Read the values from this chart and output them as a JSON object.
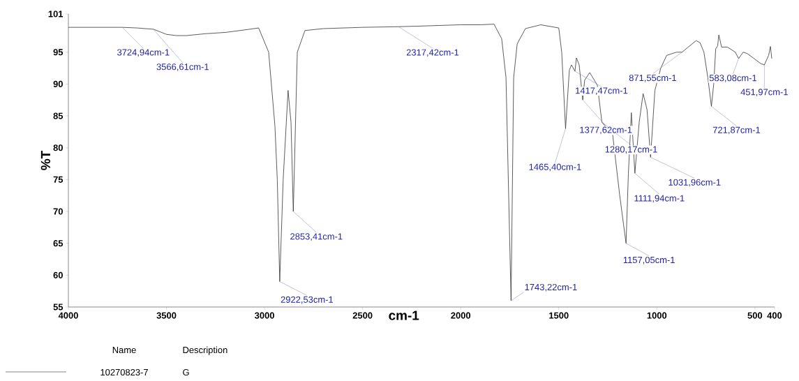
{
  "chart_data": {
    "type": "line",
    "xlabel": "cm-1",
    "ylabel": "%T",
    "xlim": [
      4000,
      400
    ],
    "ylim": [
      55,
      101
    ],
    "xticks": [
      4000,
      3500,
      3000,
      2500,
      2000,
      1500,
      1000,
      500,
      400
    ],
    "yticks": [
      55,
      60,
      65,
      70,
      75,
      80,
      85,
      90,
      95,
      101
    ],
    "legend": "bottom",
    "legend_title": "Name",
    "series": [
      {
        "name": "10270823-7",
        "color": "#333333",
        "x": [
          4000,
          3724.94,
          3650,
          3566.61,
          3500,
          3450,
          3400,
          3300,
          3200,
          3100,
          3030,
          2979,
          2947,
          2935,
          2922.53,
          2905,
          2880,
          2865,
          2853.41,
          2833,
          2794,
          2700,
          2500,
          2317.42,
          2200,
          2000,
          1900,
          1830,
          1791,
          1769,
          1743.22,
          1730,
          1712,
          1670,
          1592,
          1500,
          1485,
          1465.4,
          1446,
          1435,
          1417.47,
          1410,
          1396,
          1377.62,
          1368,
          1342,
          1303,
          1280.17,
          1225,
          1190,
          1170,
          1157.05,
          1145,
          1130,
          1111.94,
          1090,
          1070,
          1050,
          1031.96,
          1010,
          980,
          950,
          900,
          871.55,
          840,
          800,
          780,
          760,
          740,
          721.87,
          710,
          700,
          690,
          684,
          670,
          640,
          600,
          583.08,
          560,
          540,
          500,
          470,
          451.97,
          430,
          421,
          414
        ],
        "values": [
          98.9,
          98.9,
          98.8,
          98.6,
          97.8,
          97.6,
          97.6,
          97.9,
          98.1,
          98.5,
          98.8,
          95,
          83.4,
          75,
          59,
          75,
          89,
          84,
          70,
          95,
          98.4,
          98.7,
          98.9,
          99,
          99.1,
          99.3,
          99.3,
          99.4,
          97.1,
          91,
          56,
          91,
          96.3,
          98.7,
          99.3,
          98.8,
          95,
          83,
          92.2,
          93,
          92,
          94.1,
          93,
          87.5,
          90.6,
          91.8,
          89.8,
          84,
          82,
          72.7,
          68,
          65,
          76,
          85.5,
          76,
          84,
          88.5,
          86,
          78.5,
          89,
          92.5,
          94.5,
          95,
          95,
          95.8,
          96.8,
          96.5,
          95,
          91,
          86.5,
          90,
          95.5,
          96,
          97.7,
          95.8,
          95.8,
          95,
          94,
          95,
          94.8,
          93.9,
          93.2,
          93,
          94.5,
          95.9,
          94
        ]
      }
    ],
    "annotations": [
      {
        "text": "3724,94cm-1",
        "x": 3724.94,
        "y": 98.9
      },
      {
        "text": "3566,61cm-1",
        "x": 3566.61,
        "y": 98.6
      },
      {
        "text": "2922,53cm-1",
        "x": 2922.53,
        "y": 59
      },
      {
        "text": "2853,41cm-1",
        "x": 2853.41,
        "y": 70
      },
      {
        "text": "2317,42cm-1",
        "x": 2317.42,
        "y": 99
      },
      {
        "text": "1743,22cm-1",
        "x": 1743.22,
        "y": 56
      },
      {
        "text": "1465,40cm-1",
        "x": 1465.4,
        "y": 83
      },
      {
        "text": "1417,47cm-1",
        "x": 1417.47,
        "y": 92
      },
      {
        "text": "1377,62cm-1",
        "x": 1377.62,
        "y": 87.5
      },
      {
        "text": "1280,17cm-1",
        "x": 1280.17,
        "y": 84
      },
      {
        "text": "1157,05cm-1",
        "x": 1157.05,
        "y": 65
      },
      {
        "text": "1111,94cm-1",
        "x": 1111.94,
        "y": 76
      },
      {
        "text": "1031,96cm-1",
        "x": 1031.96,
        "y": 78.5
      },
      {
        "text": "871,55cm-1",
        "x": 871.55,
        "y": 95
      },
      {
        "text": "721,87cm-1",
        "x": 721.87,
        "y": 86.5
      },
      {
        "text": "583,08cm-1",
        "x": 583.08,
        "y": 94
      },
      {
        "text": "451,97cm-1",
        "x": 451.97,
        "y": 93
      },
      "Description",
      "G"
    ]
  }
}
